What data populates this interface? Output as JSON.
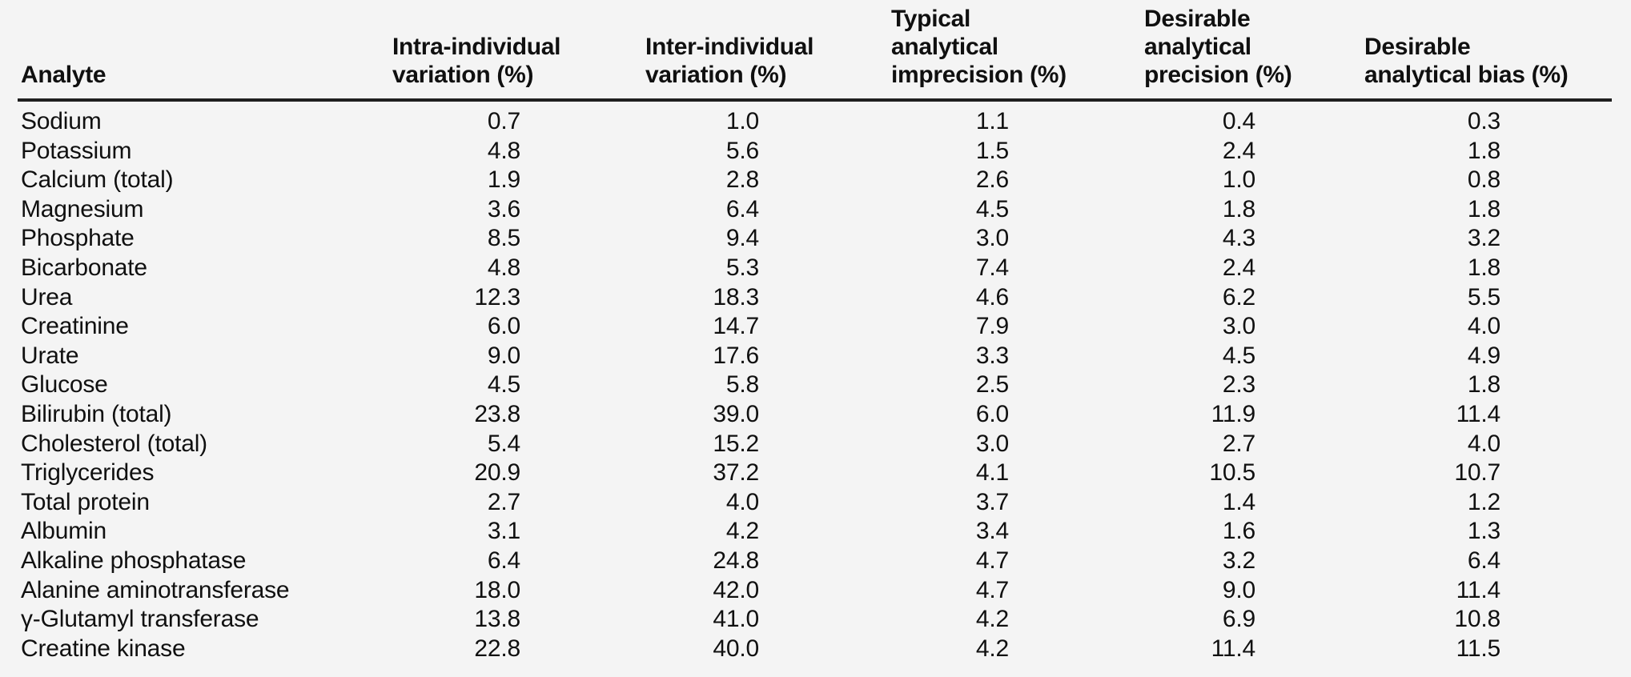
{
  "colors": {
    "background": "#f4f4f4",
    "text": "#101010",
    "header_rule": "#1f1f1f"
  },
  "table": {
    "columns": [
      {
        "key": "analyte",
        "label": "Analyte"
      },
      {
        "key": "intra_individual_variation",
        "label": "Intra-individual\nvariation (%)"
      },
      {
        "key": "inter_individual_variation",
        "label": "Inter-individual\nvariation (%)"
      },
      {
        "key": "typical_analytical_imprecision",
        "label": "Typical\nanalytical\nimprecision (%)"
      },
      {
        "key": "desirable_analytical_precision",
        "label": "Desirable\nanalytical\nprecision (%)"
      },
      {
        "key": "desirable_analytical_bias",
        "label": "Desirable\nanalytical bias (%)"
      }
    ],
    "rows": [
      [
        "Sodium",
        "0.7",
        "1.0",
        "1.1",
        "0.4",
        "0.3"
      ],
      [
        "Potassium",
        "4.8",
        "5.6",
        "1.5",
        "2.4",
        "1.8"
      ],
      [
        "Calcium (total)",
        "1.9",
        "2.8",
        "2.6",
        "1.0",
        "0.8"
      ],
      [
        "Magnesium",
        "3.6",
        "6.4",
        "4.5",
        "1.8",
        "1.8"
      ],
      [
        "Phosphate",
        "8.5",
        "9.4",
        "3.0",
        "4.3",
        "3.2"
      ],
      [
        "Bicarbonate",
        "4.8",
        "5.3",
        "7.4",
        "2.4",
        "1.8"
      ],
      [
        "Urea",
        "12.3",
        "18.3",
        "4.6",
        "6.2",
        "5.5"
      ],
      [
        "Creatinine",
        "6.0",
        "14.7",
        "7.9",
        "3.0",
        "4.0"
      ],
      [
        "Urate",
        "9.0",
        "17.6",
        "3.3",
        "4.5",
        "4.9"
      ],
      [
        "Glucose",
        "4.5",
        "5.8",
        "2.5",
        "2.3",
        "1.8"
      ],
      [
        "Bilirubin (total)",
        "23.8",
        "39.0",
        "6.0",
        "11.9",
        "11.4"
      ],
      [
        "Cholesterol (total)",
        "5.4",
        "15.2",
        "3.0",
        "2.7",
        "4.0"
      ],
      [
        "Triglycerides",
        "20.9",
        "37.2",
        "4.1",
        "10.5",
        "10.7"
      ],
      [
        "Total protein",
        "2.7",
        "4.0",
        "3.7",
        "1.4",
        "1.2"
      ],
      [
        "Albumin",
        "3.1",
        "4.2",
        "3.4",
        "1.6",
        "1.3"
      ],
      [
        "Alkaline phosphatase",
        "6.4",
        "24.8",
        "4.7",
        "3.2",
        "6.4"
      ],
      [
        "Alanine aminotransferase",
        "18.0",
        "42.0",
        "4.7",
        "9.0",
        "11.4"
      ],
      [
        "γ-Glutamyl transferase",
        "13.8",
        "41.0",
        "4.2",
        "6.9",
        "10.8"
      ],
      [
        "Creatine kinase",
        "22.8",
        "40.0",
        "4.2",
        "11.4",
        "11.5"
      ]
    ]
  }
}
